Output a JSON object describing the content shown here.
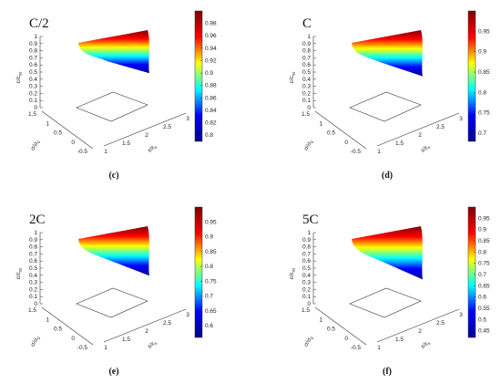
{
  "chart_data": [
    {
      "type": "surface",
      "title": "C/2",
      "panel_label": "(c)",
      "xlabel": "ε/ε_s",
      "ylabel": "σ/σ_0",
      "zlabel": "c/c_ss",
      "x_ticks": [
        "1",
        "1.5",
        "2",
        "2.5",
        "3"
      ],
      "y_ticks": [
        "-0.5",
        "0",
        "0.5",
        "1",
        "1.5"
      ],
      "z_ticks": [
        "0",
        "0.1",
        "0.2",
        "0.3",
        "0.4",
        "0.5",
        "0.6",
        "0.7",
        "0.8",
        "0.9",
        "1"
      ],
      "z_range": [
        0.79,
        1.0
      ],
      "colorbar_ticks": [
        "0.8",
        "0.82",
        "0.84",
        "0.86",
        "0.88",
        "0.9",
        "0.92",
        "0.94",
        "0.96",
        "0.98"
      ],
      "colorbar_range": [
        0.79,
        1.0
      ]
    },
    {
      "type": "surface",
      "title": "C",
      "panel_label": "(d)",
      "xlabel": "ε/ε_s",
      "ylabel": "σ/σ_0",
      "zlabel": "c/c_ss",
      "x_ticks": [
        "1",
        "1.5",
        "2",
        "2.5",
        "3"
      ],
      "y_ticks": [
        "-0.5",
        "0",
        "0.5",
        "1",
        "1.5"
      ],
      "z_ticks": [
        "0",
        "0.1",
        "0.2",
        "0.3",
        "0.4",
        "0.5",
        "0.6",
        "0.7",
        "0.8",
        "0.9",
        "1"
      ],
      "z_range": [
        0.68,
        1.0
      ],
      "colorbar_ticks": [
        "0.7",
        "0.75",
        "0.8",
        "0.85",
        "0.9",
        "0.95"
      ],
      "colorbar_range": [
        0.68,
        1.0
      ]
    },
    {
      "type": "surface",
      "title": "2C",
      "panel_label": "(e)",
      "xlabel": "ε/ε_s",
      "ylabel": "σ/σ_0",
      "zlabel": "c/c_ss",
      "x_ticks": [
        "1",
        "1.5",
        "2",
        "2.5",
        "3"
      ],
      "y_ticks": [
        "-0.5",
        "0",
        "0.5",
        "1",
        "1.5"
      ],
      "z_ticks": [
        "0",
        "0.1",
        "0.2",
        "0.3",
        "0.4",
        "0.5",
        "0.6",
        "0.7",
        "0.8",
        "0.9",
        "1"
      ],
      "z_range": [
        0.56,
        1.0
      ],
      "colorbar_ticks": [
        "0.6",
        "0.65",
        "0.7",
        "0.75",
        "0.8",
        "0.85",
        "0.9",
        "0.95"
      ],
      "colorbar_range": [
        0.56,
        1.0
      ]
    },
    {
      "type": "surface",
      "title": "5C",
      "panel_label": "(f)",
      "xlabel": "ε/ε_s",
      "ylabel": "σ/σ_0",
      "zlabel": "c/c_ss",
      "x_ticks": [
        "1",
        "1.5",
        "2",
        "2.5",
        "3"
      ],
      "y_ticks": [
        "-0.5",
        "0",
        "0.5",
        "1",
        "1.5"
      ],
      "z_ticks": [
        "0",
        "0.1",
        "0.2",
        "0.3",
        "0.4",
        "0.5",
        "0.6",
        "0.7",
        "0.8",
        "0.9",
        "1"
      ],
      "z_range": [
        0.42,
        1.0
      ],
      "colorbar_ticks": [
        "0.45",
        "0.5",
        "0.55",
        "0.6",
        "0.65",
        "0.7",
        "0.75",
        "0.8",
        "0.85",
        "0.9",
        "0.95"
      ],
      "colorbar_range": [
        0.42,
        1.0
      ]
    }
  ],
  "colors": {
    "colormap": [
      "#00008f",
      "#0000ff",
      "#00ffff",
      "#ffff00",
      "#ff0000",
      "#800000"
    ],
    "axis": "#333333",
    "text": "#111111"
  }
}
